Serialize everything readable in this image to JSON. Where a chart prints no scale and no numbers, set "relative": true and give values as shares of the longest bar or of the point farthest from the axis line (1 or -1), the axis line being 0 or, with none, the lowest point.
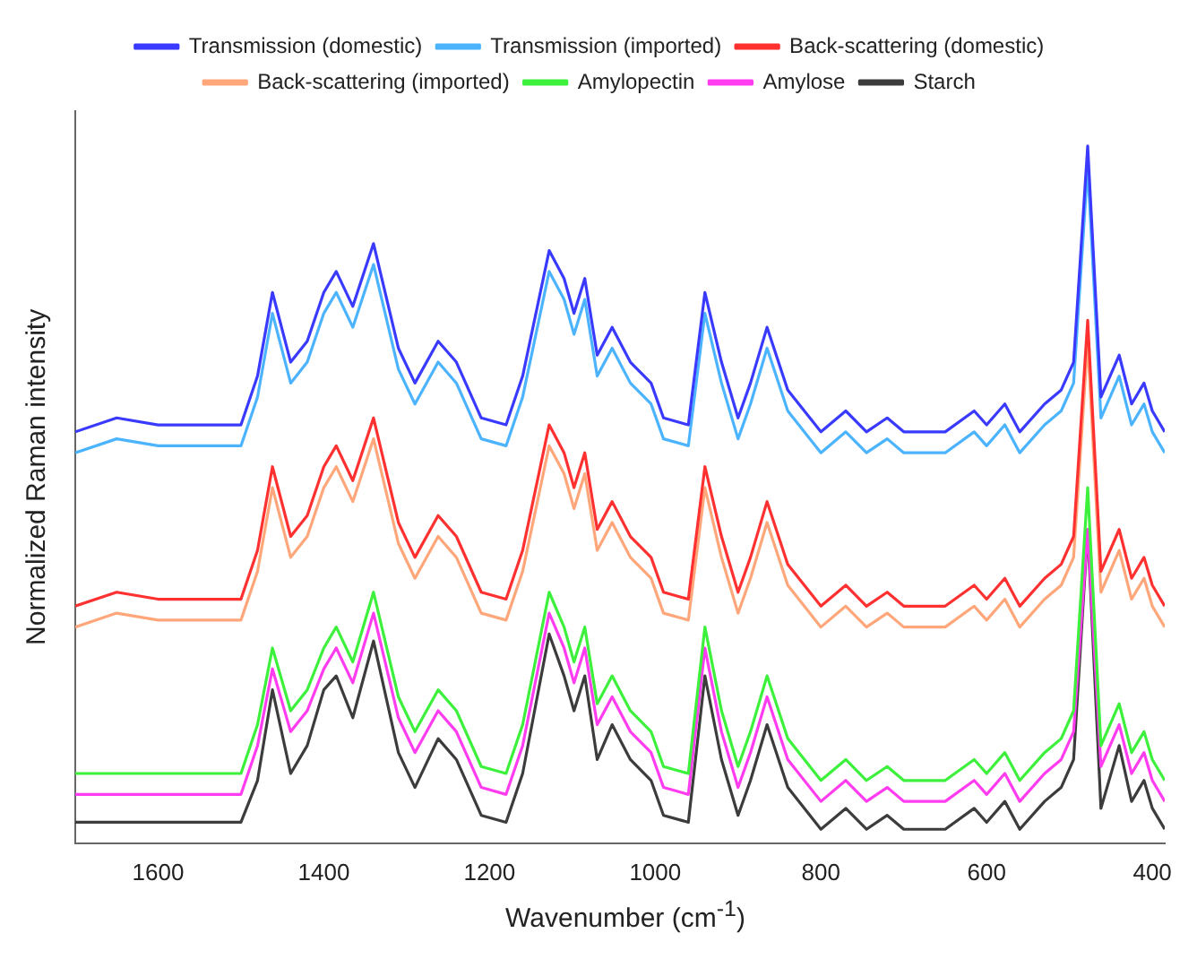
{
  "chart_data": {
    "type": "line",
    "relative": true,
    "xlabel": "Wavenumber (cm$^{-1}$)",
    "ylabel": "Normalized Raman intensity",
    "xlim": [
      1700,
      385
    ],
    "xticks": [
      1600,
      1400,
      1200,
      1000,
      800,
      600,
      400
    ],
    "grid": false,
    "legend": "top",
    "marker": "none",
    "line_style": "solid",
    "x": [
      1700,
      1650,
      1600,
      1550,
      1500,
      1480,
      1462,
      1440,
      1420,
      1400,
      1385,
      1365,
      1340,
      1310,
      1290,
      1262,
      1240,
      1210,
      1180,
      1160,
      1128,
      1110,
      1098,
      1085,
      1070,
      1052,
      1030,
      1005,
      990,
      960,
      940,
      920,
      900,
      885,
      865,
      840,
      800,
      770,
      745,
      720,
      700,
      650,
      615,
      600,
      578,
      560,
      530,
      510,
      495,
      478,
      462,
      440,
      425,
      410,
      400,
      385
    ],
    "series": [
      {
        "name": "Transmission (domestic)",
        "color": "#3a3aff",
        "values": [
          0.59,
          0.61,
          0.6,
          0.6,
          0.6,
          0.67,
          0.79,
          0.69,
          0.72,
          0.79,
          0.82,
          0.77,
          0.86,
          0.71,
          0.66,
          0.72,
          0.69,
          0.61,
          0.6,
          0.67,
          0.85,
          0.81,
          0.76,
          0.81,
          0.7,
          0.74,
          0.69,
          0.66,
          0.61,
          0.6,
          0.79,
          0.69,
          0.61,
          0.66,
          0.74,
          0.65,
          0.59,
          0.62,
          0.59,
          0.61,
          0.59,
          0.59,
          0.62,
          0.6,
          0.63,
          0.59,
          0.63,
          0.65,
          0.69,
          1.0,
          0.64,
          0.7,
          0.63,
          0.66,
          0.62,
          0.59
        ]
      },
      {
        "name": "Transmission (imported)",
        "color": "#4cb4ff",
        "values": [
          0.56,
          0.58,
          0.57,
          0.57,
          0.57,
          0.64,
          0.76,
          0.66,
          0.69,
          0.76,
          0.79,
          0.74,
          0.83,
          0.68,
          0.63,
          0.69,
          0.66,
          0.58,
          0.57,
          0.64,
          0.82,
          0.78,
          0.73,
          0.78,
          0.67,
          0.71,
          0.66,
          0.63,
          0.58,
          0.57,
          0.76,
          0.66,
          0.58,
          0.63,
          0.71,
          0.62,
          0.56,
          0.59,
          0.56,
          0.58,
          0.56,
          0.56,
          0.59,
          0.57,
          0.6,
          0.56,
          0.6,
          0.62,
          0.66,
          0.97,
          0.61,
          0.67,
          0.6,
          0.63,
          0.59,
          0.56
        ]
      },
      {
        "name": "Back-scattering (domestic)",
        "color": "#ff3030",
        "values": [
          0.34,
          0.36,
          0.35,
          0.35,
          0.35,
          0.42,
          0.54,
          0.44,
          0.47,
          0.54,
          0.57,
          0.52,
          0.61,
          0.46,
          0.41,
          0.47,
          0.44,
          0.36,
          0.35,
          0.42,
          0.6,
          0.56,
          0.51,
          0.56,
          0.45,
          0.49,
          0.44,
          0.41,
          0.36,
          0.35,
          0.54,
          0.44,
          0.36,
          0.41,
          0.49,
          0.4,
          0.34,
          0.37,
          0.34,
          0.36,
          0.34,
          0.34,
          0.37,
          0.35,
          0.38,
          0.34,
          0.38,
          0.4,
          0.44,
          0.75,
          0.39,
          0.45,
          0.38,
          0.41,
          0.37,
          0.34
        ]
      },
      {
        "name": "Back-scattering (imported)",
        "color": "#ffa77a",
        "values": [
          0.31,
          0.33,
          0.32,
          0.32,
          0.32,
          0.39,
          0.51,
          0.41,
          0.44,
          0.51,
          0.54,
          0.49,
          0.58,
          0.43,
          0.38,
          0.44,
          0.41,
          0.33,
          0.32,
          0.39,
          0.57,
          0.53,
          0.48,
          0.53,
          0.42,
          0.46,
          0.41,
          0.38,
          0.33,
          0.32,
          0.51,
          0.41,
          0.33,
          0.38,
          0.46,
          0.37,
          0.31,
          0.34,
          0.31,
          0.33,
          0.31,
          0.31,
          0.34,
          0.32,
          0.35,
          0.31,
          0.35,
          0.37,
          0.41,
          0.72,
          0.36,
          0.42,
          0.35,
          0.38,
          0.34,
          0.31
        ]
      },
      {
        "name": "Amylopectin",
        "color": "#3cf03c",
        "values": [
          0.1,
          0.1,
          0.1,
          0.1,
          0.1,
          0.17,
          0.28,
          0.19,
          0.22,
          0.28,
          0.31,
          0.26,
          0.36,
          0.21,
          0.16,
          0.22,
          0.19,
          0.11,
          0.1,
          0.17,
          0.36,
          0.31,
          0.26,
          0.31,
          0.2,
          0.24,
          0.19,
          0.16,
          0.11,
          0.1,
          0.31,
          0.19,
          0.11,
          0.16,
          0.24,
          0.15,
          0.09,
          0.12,
          0.09,
          0.11,
          0.09,
          0.09,
          0.12,
          0.1,
          0.13,
          0.09,
          0.13,
          0.15,
          0.19,
          0.51,
          0.14,
          0.2,
          0.13,
          0.16,
          0.12,
          0.09
        ]
      },
      {
        "name": "Amylose",
        "color": "#ff3cf0",
        "values": [
          0.07,
          0.07,
          0.07,
          0.07,
          0.07,
          0.14,
          0.25,
          0.16,
          0.19,
          0.25,
          0.28,
          0.23,
          0.33,
          0.18,
          0.13,
          0.19,
          0.16,
          0.08,
          0.07,
          0.14,
          0.33,
          0.28,
          0.23,
          0.28,
          0.17,
          0.21,
          0.16,
          0.13,
          0.08,
          0.07,
          0.28,
          0.16,
          0.08,
          0.13,
          0.21,
          0.12,
          0.06,
          0.09,
          0.06,
          0.08,
          0.06,
          0.06,
          0.09,
          0.07,
          0.1,
          0.06,
          0.1,
          0.12,
          0.16,
          0.45,
          0.11,
          0.17,
          0.1,
          0.13,
          0.09,
          0.06
        ]
      },
      {
        "name": "Starch",
        "color": "#3c3c3c",
        "values": [
          0.03,
          0.03,
          0.03,
          0.03,
          0.03,
          0.09,
          0.22,
          0.1,
          0.14,
          0.22,
          0.24,
          0.18,
          0.29,
          0.13,
          0.08,
          0.15,
          0.12,
          0.04,
          0.03,
          0.1,
          0.3,
          0.24,
          0.19,
          0.24,
          0.12,
          0.17,
          0.12,
          0.09,
          0.04,
          0.03,
          0.24,
          0.12,
          0.04,
          0.09,
          0.17,
          0.08,
          0.02,
          0.05,
          0.02,
          0.04,
          0.02,
          0.02,
          0.05,
          0.03,
          0.06,
          0.02,
          0.06,
          0.08,
          0.12,
          0.45,
          0.05,
          0.14,
          0.06,
          0.09,
          0.05,
          0.02
        ]
      }
    ]
  }
}
